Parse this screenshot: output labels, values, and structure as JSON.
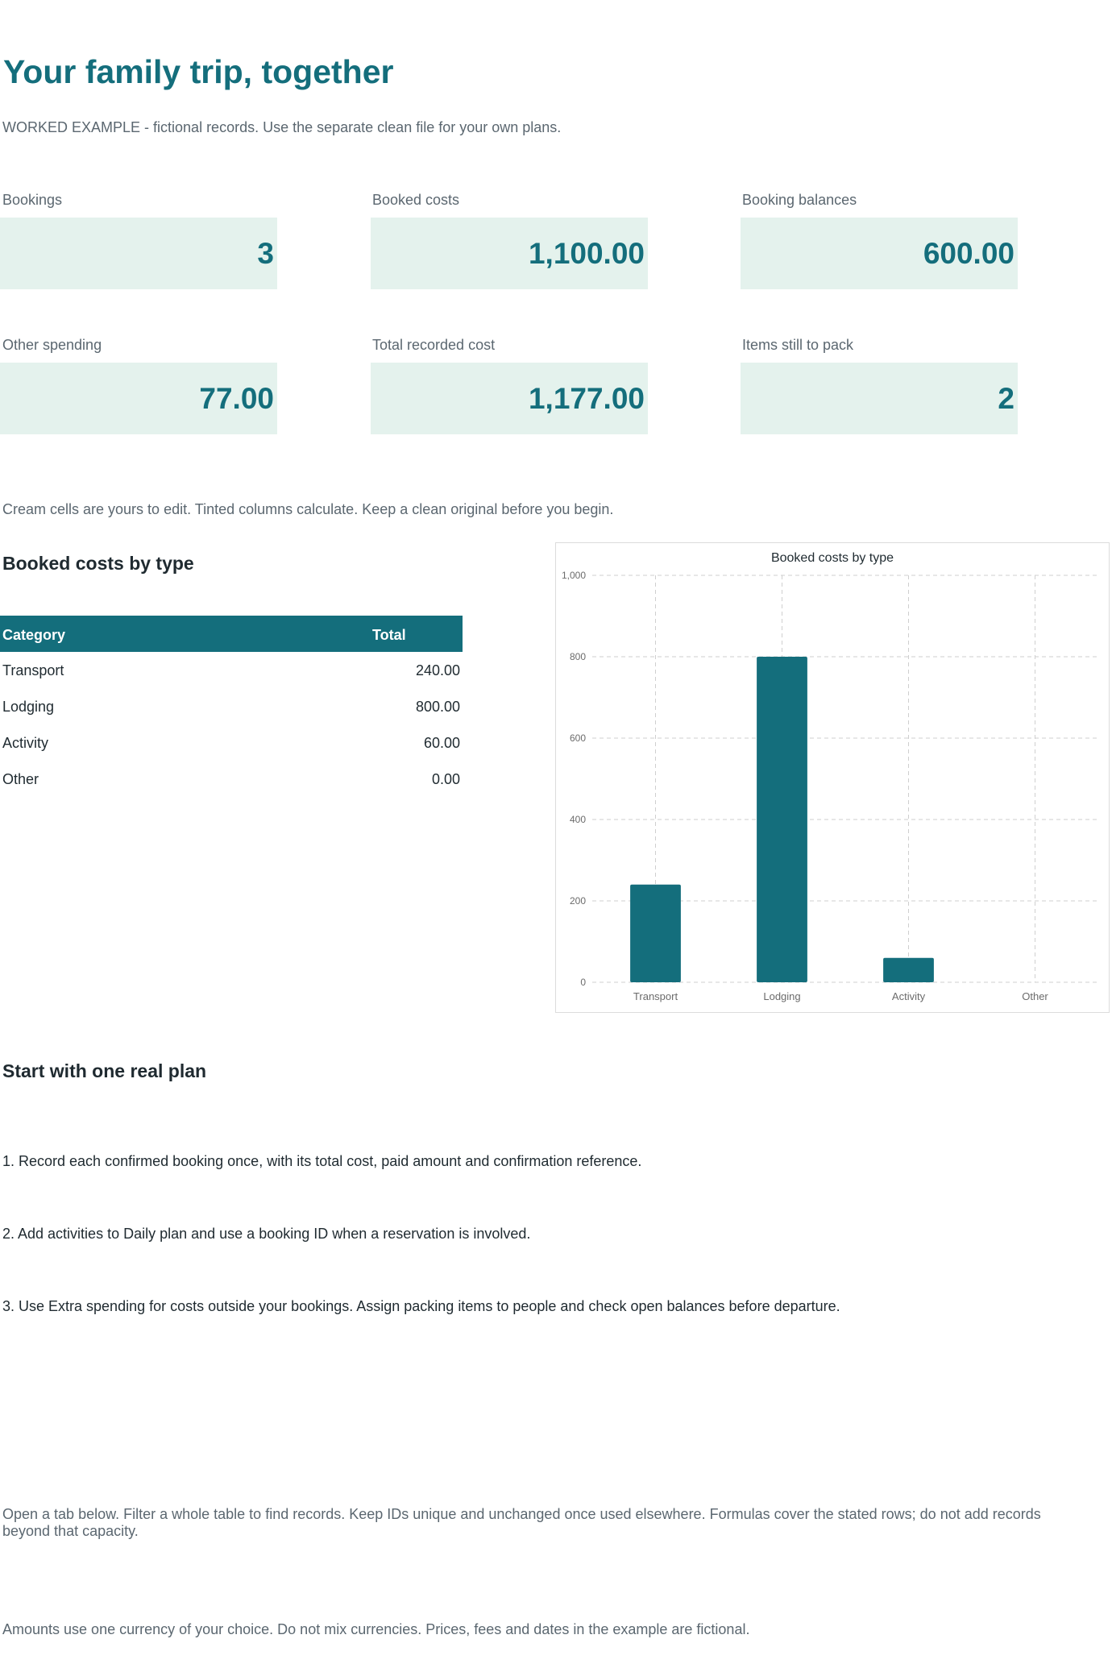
{
  "header": {
    "title": "Your family trip, together",
    "subtitle": "WORKED EXAMPLE - fictional records. Use the separate clean file for your own plans."
  },
  "kpis": [
    {
      "label": "Bookings",
      "value": "3"
    },
    {
      "label": "Booked costs",
      "value": "1,100.00"
    },
    {
      "label": "Booking balances",
      "value": "600.00"
    },
    {
      "label": "Other spending",
      "value": "77.00"
    },
    {
      "label": "Total recorded cost",
      "value": "1,177.00"
    },
    {
      "label": "Items still to pack",
      "value": "2"
    }
  ],
  "edit_note": "Cream cells are yours to edit. Tinted columns calculate. Keep a clean original before you begin.",
  "booked_section": {
    "heading": "Booked costs by type",
    "table": {
      "headers": [
        "Category",
        "Total"
      ],
      "rows": [
        [
          "Transport",
          "240.00"
        ],
        [
          "Lodging",
          "800.00"
        ],
        [
          "Activity",
          "60.00"
        ],
        [
          "Other",
          "0.00"
        ]
      ]
    }
  },
  "chart_data": {
    "type": "bar",
    "title": "Booked costs by type",
    "categories": [
      "Transport",
      "Lodging",
      "Activity",
      "Other"
    ],
    "values": [
      240,
      800,
      60,
      0
    ],
    "ylim": [
      0,
      1000
    ],
    "yticks": [
      0,
      200,
      400,
      600,
      800,
      1000
    ],
    "ytick_labels": [
      "0",
      "200",
      "400",
      "600",
      "800",
      "1,000"
    ],
    "xlabel": "",
    "ylabel": "",
    "grid": true,
    "bar_color": "#146e7c"
  },
  "start_section": {
    "heading": "Start with one real plan",
    "steps": [
      "1. Record each confirmed booking once, with its total cost, paid amount and confirmation reference.",
      "2. Add activities to Daily plan and use a booking ID when a reservation is involved.",
      "3. Use Extra spending for costs outside your bookings. Assign packing items to people and check open balances before departure."
    ]
  },
  "footer_notes": [
    "Open a tab below. Filter a whole table to find records. Keep IDs unique and unchanged once used elsewhere. Formulas cover the stated rows; do not add records beyond that capacity.",
    "Amounts use one currency of your choice. Do not mix currencies. Prices, fees and dates in the example are fictional."
  ],
  "colors": {
    "accent": "#146e7c",
    "kpi_bg": "#e4f2ed",
    "muted_text": "#5b6770"
  }
}
